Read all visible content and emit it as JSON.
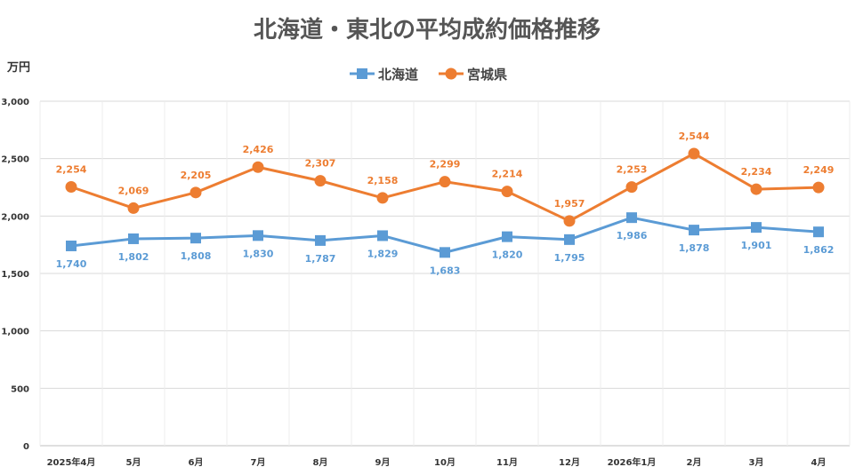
{
  "chart_data": {
    "type": "line",
    "title": "北海道・東北の平均成約価格推移",
    "ylabel": "万円",
    "xlabel": "",
    "categories": [
      "2025年4月",
      "5月",
      "6月",
      "7月",
      "8月",
      "9月",
      "10月",
      "11月",
      "12月",
      "2026年1月",
      "2月",
      "3月",
      "4月"
    ],
    "ylim": [
      0,
      3000
    ],
    "yticks": [
      0,
      500,
      1000,
      1500,
      2000,
      2500,
      3000
    ],
    "ytick_labels": [
      "0",
      "500",
      "1,000",
      "1,500",
      "2,000",
      "2,500",
      "3,000"
    ],
    "grid": true,
    "legend_position": "top-center",
    "series": [
      {
        "name": "北海道",
        "color": "#5B9BD5",
        "marker": "square",
        "values": [
          1740,
          1802,
          1808,
          1830,
          1787,
          1829,
          1683,
          1820,
          1795,
          1986,
          1878,
          1901,
          1862
        ],
        "labels": [
          "1,740",
          "1,802",
          "1,808",
          "1,830",
          "1,787",
          "1,829",
          "1,683",
          "1,820",
          "1,795",
          "1,986",
          "1,878",
          "1,901",
          "1,862"
        ]
      },
      {
        "name": "宮城県",
        "color": "#ED7D31",
        "marker": "circle",
        "values": [
          2254,
          2069,
          2205,
          2426,
          2307,
          2158,
          2299,
          2214,
          1957,
          2253,
          2544,
          2234,
          2249
        ],
        "labels": [
          "2,254",
          "2,069",
          "2,205",
          "2,426",
          "2,307",
          "2,158",
          "2,299",
          "2,214",
          "1,957",
          "2,253",
          "2,544",
          "2,234",
          "2,249"
        ]
      }
    ]
  }
}
